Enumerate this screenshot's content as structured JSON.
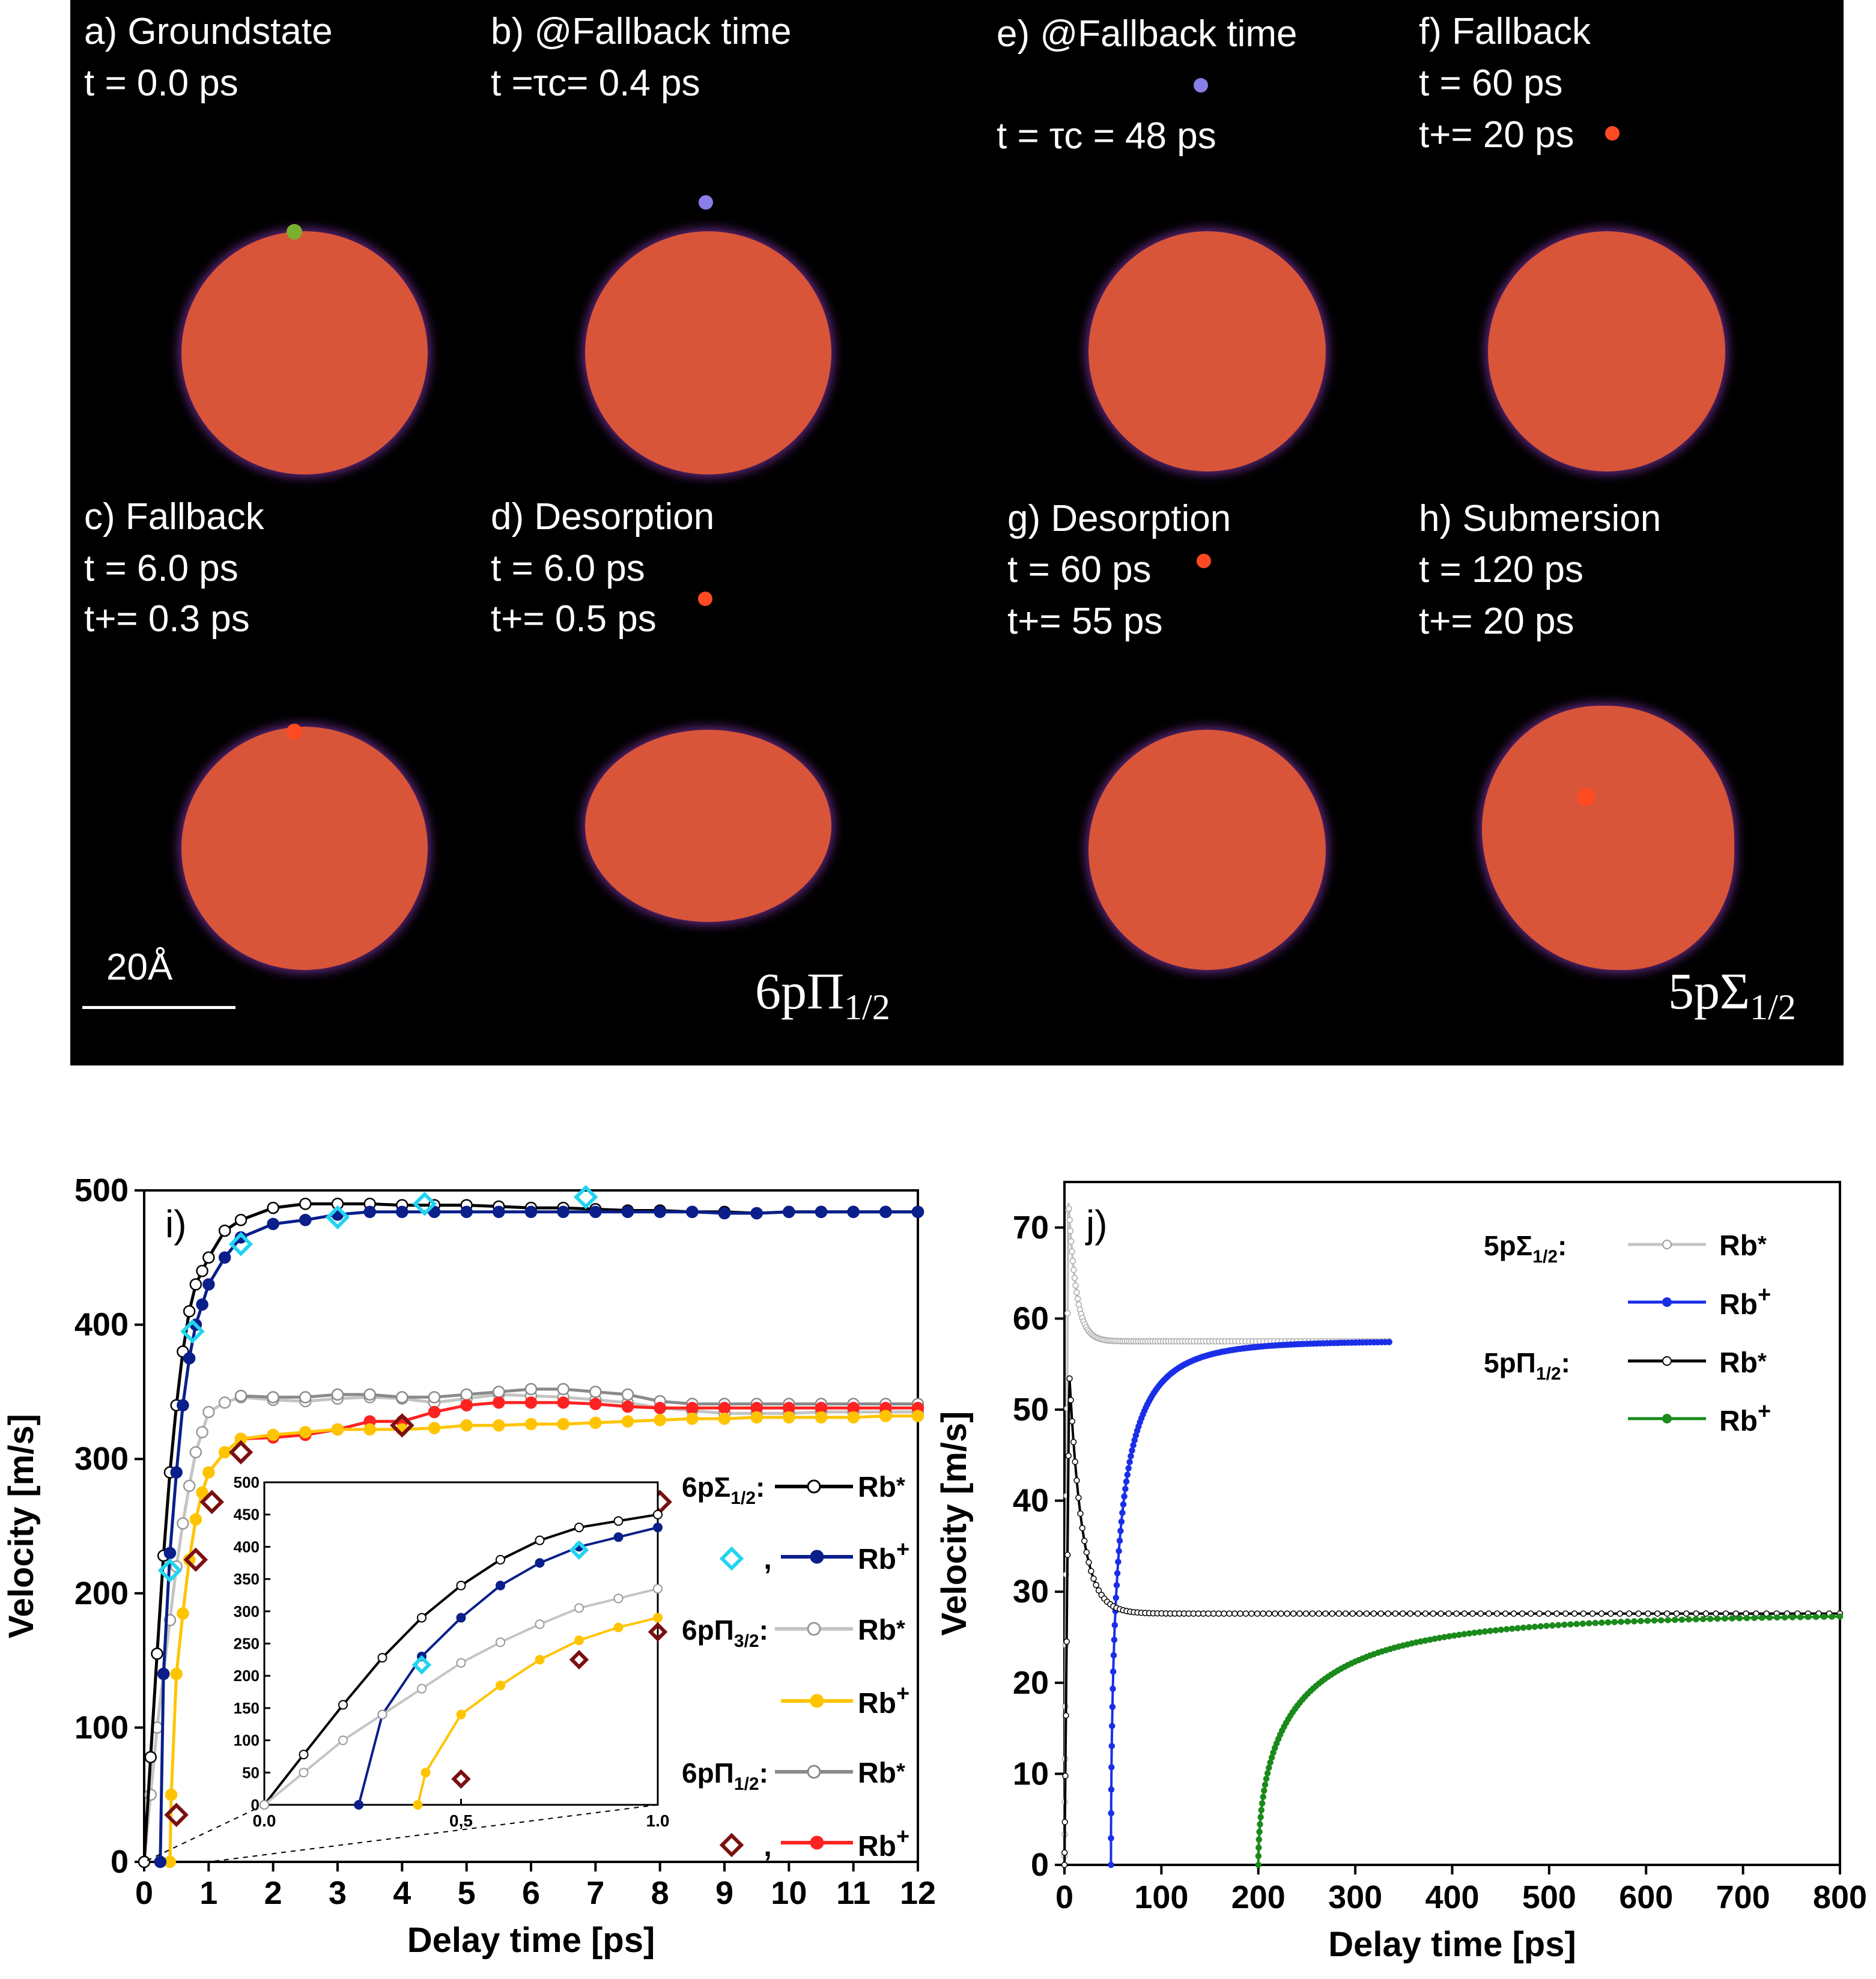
{
  "colors": {
    "droplet": "#d8553a",
    "rim": "#6a2a8a",
    "dot_green": "#7ab030",
    "dot_purple": "#8a7ee8",
    "dot_red": "#ff4a22",
    "series_black": "#000000",
    "series_navy": "#0a1f8a",
    "series_light_gray": "#c4c4c4",
    "series_gray": "#8a8a8a",
    "series_yellow": "#ffc400",
    "series_red": "#ff2222",
    "marker_cyan": "#22d4f0",
    "marker_darkred": "#7a1010",
    "series_blue": "#1a2ee8",
    "series_green": "#1a8a1a"
  },
  "panels": {
    "a": {
      "l1": "a) Groundstate",
      "l2": "t = 0.0 ps"
    },
    "b": {
      "l1": "b) @Fallback time",
      "l2": "t =τc= 0.4 ps"
    },
    "c": {
      "l1": "c)  Fallback",
      "l2": "t = 6.0 ps",
      "l3": "t+= 0.3 ps"
    },
    "d": {
      "l1": "d) Desorption",
      "l2": "t = 6.0 ps",
      "l3": "t+= 0.5 ps"
    },
    "e": {
      "l1": "e) @Fallback time",
      "l2": "t = τc = 48 ps"
    },
    "f": {
      "l1": "f) Fallback",
      "l2": "t = 60 ps",
      "l3": "t+= 20 ps"
    },
    "g": {
      "l1": "g) Desorption",
      "l2": "t = 60 ps",
      "l3": "t+= 55 ps"
    },
    "h": {
      "l1": "h) Submersion",
      "l2": "t =  120 ps",
      "l3": "t+= 20 ps"
    },
    "scale": "20Å",
    "state_left": "6pΠ1/2",
    "state_right": "5pΣ1/2"
  },
  "chart_data": [
    {
      "id": "i",
      "type": "line",
      "panel_label": "i)",
      "xlabel": "Delay time [ps]",
      "ylabel": "Velocity [m/s]",
      "xlim": [
        0,
        12
      ],
      "ylim": [
        0,
        500
      ],
      "xticks": [
        0,
        1,
        2,
        3,
        4,
        5,
        6,
        7,
        8,
        9,
        10,
        11,
        12
      ],
      "yticks": [
        0,
        100,
        200,
        300,
        400,
        500
      ],
      "legend": {
        "g1": "6pΣ1/2:",
        "g2": "6pΠ3/2:",
        "g3": "6pΠ1/2:",
        "rb_star": "Rb*",
        "rb_plus": "Rb+",
        "comma": ","
      },
      "series": [
        {
          "key": "s6_star",
          "x": [
            0,
            0.1,
            0.2,
            0.3,
            0.4,
            0.5,
            0.6,
            0.7,
            0.8,
            0.9,
            1.0,
            1.25,
            1.5,
            2,
            2.5,
            3,
            3.5,
            4,
            4.5,
            5,
            5.5,
            6,
            6.5,
            7,
            7.5,
            8,
            8.5,
            9,
            9.5,
            10,
            10.5,
            11,
            11.5,
            12
          ],
          "y": [
            0,
            78,
            155,
            228,
            290,
            340,
            380,
            410,
            430,
            440,
            450,
            470,
            478,
            487,
            490,
            490,
            490,
            489,
            489,
            489,
            488,
            487,
            487,
            486,
            485,
            485,
            484,
            484,
            483,
            484,
            484,
            484,
            484,
            484
          ]
        },
        {
          "key": "s6_plus",
          "x": [
            0.25,
            0.3,
            0.4,
            0.5,
            0.6,
            0.7,
            0.8,
            0.9,
            1.0,
            1.25,
            1.5,
            2,
            2.5,
            3,
            3.5,
            4,
            4.5,
            5,
            5.5,
            6,
            6.5,
            7,
            7.5,
            8,
            8.5,
            9,
            9.5,
            10,
            10.5,
            11,
            11.5,
            12
          ],
          "y": [
            0,
            140,
            230,
            290,
            340,
            375,
            400,
            415,
            430,
            450,
            465,
            475,
            478,
            482,
            484,
            484,
            484,
            484,
            484,
            484,
            484,
            484,
            484,
            484,
            484,
            483,
            483,
            484,
            484,
            484,
            484,
            484
          ]
        },
        {
          "key": "p32_star",
          "x": [
            0,
            0.1,
            0.2,
            0.3,
            0.4,
            0.5,
            0.6,
            0.7,
            0.8,
            0.9,
            1.0,
            1.25,
            1.5,
            2,
            2.5,
            3,
            3.5,
            4,
            4.5,
            5,
            5.5,
            6,
            6.5,
            7,
            7.5,
            8,
            8.5,
            9,
            9.5,
            10,
            10.5,
            11,
            11.5,
            12
          ],
          "y": [
            0,
            50,
            100,
            140,
            180,
            220,
            252,
            280,
            305,
            320,
            335,
            342,
            346,
            344,
            343,
            345,
            346,
            345,
            342,
            345,
            348,
            347,
            346,
            344,
            342,
            338,
            336,
            334,
            334,
            334,
            335,
            335,
            335,
            335
          ]
        },
        {
          "key": "p32_plus",
          "x": [
            0.4,
            0.42,
            0.5,
            0.6,
            0.7,
            0.8,
            0.9,
            1.0,
            1.25,
            1.5,
            2,
            2.5,
            3,
            3.5,
            4,
            4.5,
            5,
            5.5,
            6,
            6.5,
            7,
            7.5,
            8,
            8.5,
            9,
            9.5,
            10,
            10.5,
            11,
            11.5,
            12
          ],
          "y": [
            0,
            50,
            140,
            185,
            225,
            255,
            275,
            290,
            305,
            315,
            318,
            320,
            322,
            322,
            322,
            323,
            325,
            325,
            326,
            326,
            327,
            328,
            329,
            330,
            330,
            331,
            331,
            331,
            331,
            332,
            332
          ]
        },
        {
          "key": "p12_star",
          "x": [
            1.5,
            2,
            2.5,
            3,
            3.5,
            4,
            4.5,
            5,
            5.5,
            6,
            6.5,
            7,
            7.5,
            8,
            8.5,
            9,
            9.5,
            10,
            10.5,
            11,
            11.5,
            12
          ],
          "y": [
            347,
            346,
            346,
            348,
            348,
            346,
            346,
            348,
            350,
            352,
            352,
            350,
            348,
            343,
            341,
            341,
            341,
            341,
            341,
            341,
            341,
            341
          ]
        },
        {
          "key": "p12_plus",
          "x": [
            1.5,
            2,
            2.5,
            3,
            3.5,
            4,
            4.5,
            5,
            5.5,
            6,
            6.5,
            7,
            7.5,
            8,
            8.5,
            9,
            9.5,
            10,
            10.5,
            11,
            11.5,
            12
          ],
          "y": [
            315,
            316,
            318,
            322,
            328,
            328,
            335,
            340,
            342,
            342,
            342,
            341,
            339,
            338,
            338,
            338,
            338,
            338,
            338,
            338,
            338,
            338
          ]
        }
      ],
      "markers_cyan": {
        "x": [
          0.4,
          0.75,
          1.5,
          3,
          4.35,
          6.85
        ],
        "y": [
          217,
          395,
          460,
          480,
          490,
          495
        ]
      },
      "markers_darkred": {
        "x": [
          0.5,
          0.8,
          1.05,
          1.5,
          4,
          8
        ],
        "y": [
          35,
          225,
          268,
          305,
          325,
          268
        ]
      },
      "inset": {
        "xlim": [
          0,
          1
        ],
        "ylim": [
          0,
          500
        ],
        "xticks": [
          0,
          0.5,
          1.0
        ],
        "xtick_labels": [
          "0.0",
          "0,5",
          "1.0"
        ],
        "yticks": [
          0,
          50,
          100,
          150,
          200,
          250,
          300,
          350,
          400,
          450,
          500
        ],
        "series": [
          {
            "key": "s6_star",
            "x": [
              0,
              0.1,
              0.2,
              0.3,
              0.4,
              0.5,
              0.6,
              0.7,
              0.8,
              0.9,
              1.0
            ],
            "y": [
              0,
              78,
              155,
              228,
              290,
              340,
              380,
              410,
              430,
              440,
              450
            ]
          },
          {
            "key": "s6_plus",
            "x": [
              0.24,
              0.3,
              0.4,
              0.5,
              0.6,
              0.7,
              0.8,
              0.9,
              1.0
            ],
            "y": [
              0,
              140,
              230,
              290,
              340,
              375,
              400,
              415,
              430
            ]
          },
          {
            "key": "p32_star",
            "x": [
              0,
              0.1,
              0.2,
              0.3,
              0.4,
              0.5,
              0.6,
              0.7,
              0.8,
              0.9,
              1.0
            ],
            "y": [
              0,
              50,
              100,
              140,
              180,
              220,
              252,
              280,
              305,
              320,
              335
            ]
          },
          {
            "key": "p32_plus",
            "x": [
              0.39,
              0.41,
              0.5,
              0.6,
              0.7,
              0.8,
              0.9,
              1.0
            ],
            "y": [
              0,
              50,
              140,
              185,
              225,
              255,
              275,
              290
            ]
          }
        ],
        "markers_cyan": {
          "x": [
            0.4,
            0.8
          ],
          "y": [
            217,
            395
          ]
        },
        "markers_darkred": {
          "x": [
            0.5,
            0.8,
            1.0
          ],
          "y": [
            40,
            225,
            268
          ]
        }
      }
    },
    {
      "id": "j",
      "type": "line",
      "panel_label": "j)",
      "xlabel": "Delay time [ps]",
      "ylabel": "Velocity [m/s]",
      "xlim": [
        0,
        800
      ],
      "ylim": [
        0,
        75
      ],
      "xticks": [
        0,
        100,
        200,
        300,
        400,
        500,
        600,
        700,
        800
      ],
      "yticks": [
        0,
        10,
        20,
        30,
        40,
        50,
        60,
        70
      ],
      "legend": {
        "g1": "5pΣ1/2:",
        "g2": "5pΠ1/2:",
        "rb_star": "Rb*",
        "rb_plus": "Rb+"
      },
      "series": [
        {
          "key": "sig_star",
          "name": "5pΣ1/2 Rb*",
          "t0": 0,
          "t1": 335,
          "model": "peak",
          "peak": 73.2,
          "tpeak": 4,
          "plateau": 57.5,
          "tau": 8
        },
        {
          "key": "sig_plus",
          "name": "5pΣ1/2 Rb+",
          "t0": 48,
          "t1": 335,
          "model": "rise",
          "plateau": 57.5,
          "tau": 9.6
        },
        {
          "key": "pi_star",
          "name": "5pΠ1/2 Rb*",
          "t0": 0,
          "t1": 800,
          "model": "peak",
          "peak": 54,
          "tpeak": 5,
          "plateau": 27.6,
          "tau": 13
        },
        {
          "key": "pi_plus",
          "name": "5pΠ1/2 Rb+",
          "t0": 200,
          "t1": 800,
          "model": "rise",
          "plateau": 27.6,
          "tau": 40
        }
      ]
    }
  ]
}
